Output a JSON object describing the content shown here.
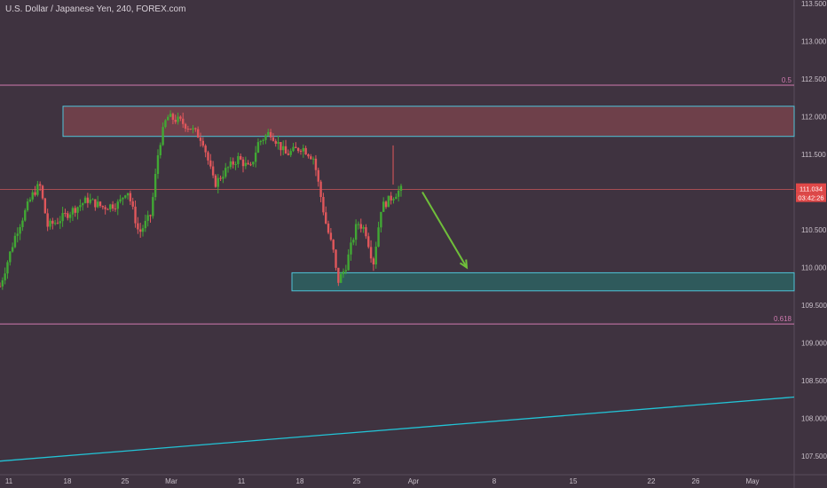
{
  "header": {
    "title": "U.S. Dollar / Japanese Yen, 240, FOREX.com"
  },
  "colors": {
    "background": "#3f3340",
    "axis_text": "#c9c0c9",
    "up_candle": "#41a834",
    "down_candle": "#e0575b",
    "fib_line": "#d07ab0",
    "price_line": "#e25d5d",
    "resistance_zone_fill": "#6e404a",
    "support_zone_fill": "#2f5a5c",
    "zone_border": "#4fc3d8",
    "trendline": "#22c4d6",
    "arrow": "#6fbf3a",
    "price_badge": "#e04848"
  },
  "price_axis": {
    "labels": [
      "113.500",
      "113.000",
      "112.500",
      "112.000",
      "111.500",
      "111.000",
      "110.500",
      "110.000",
      "109.500",
      "109.000",
      "108.500",
      "108.000",
      "107.500"
    ],
    "current_price": "111.034",
    "countdown": "03:42:26"
  },
  "time_axis": {
    "labels": [
      "11",
      "18",
      "25",
      "Mar",
      "11",
      "18",
      "25",
      "Apr",
      "8",
      "15",
      "22",
      "26",
      "May"
    ]
  },
  "annotations": {
    "fib_50": {
      "label": "0.5",
      "price": 112.42
    },
    "fib_618": {
      "label": "0.618",
      "price": 109.25
    },
    "resistance_zone": {
      "top": 112.14,
      "bottom": 111.74
    },
    "support_zone": {
      "top": 109.93,
      "bottom": 109.69
    },
    "trendline": {
      "start_price": 107.43,
      "end_price": 108.28
    }
  },
  "chart_data": {
    "type": "candlestick",
    "title": "U.S. Dollar / Japanese Yen, 240, FOREX.com",
    "ylim": [
      107.25,
      113.55
    ],
    "y_ticks": [
      107.5,
      108.0,
      108.5,
      109.0,
      109.5,
      110.0,
      110.5,
      111.0,
      111.5,
      112.0,
      112.5,
      113.0,
      113.5
    ],
    "x_ticks": [
      "11",
      "18",
      "25",
      "Mar",
      "11",
      "18",
      "25",
      "Apr",
      "8",
      "15",
      "22",
      "26",
      "May"
    ],
    "close_path": [
      [
        0,
        109.75
      ],
      [
        0.02,
        110.45
      ],
      [
        0.04,
        110.95
      ],
      [
        0.05,
        111.1
      ],
      [
        0.06,
        110.55
      ],
      [
        0.07,
        110.6
      ],
      [
        0.09,
        110.75
      ],
      [
        0.11,
        110.9
      ],
      [
        0.13,
        110.8
      ],
      [
        0.15,
        110.85
      ],
      [
        0.16,
        111.05
      ],
      [
        0.175,
        110.45
      ],
      [
        0.19,
        110.7
      ],
      [
        0.2,
        111.6
      ],
      [
        0.21,
        112.0
      ],
      [
        0.225,
        111.95
      ],
      [
        0.24,
        111.85
      ],
      [
        0.255,
        111.7
      ],
      [
        0.27,
        111.1
      ],
      [
        0.285,
        111.3
      ],
      [
        0.3,
        111.45
      ],
      [
        0.315,
        111.3
      ],
      [
        0.325,
        111.65
      ],
      [
        0.34,
        111.8
      ],
      [
        0.36,
        111.5
      ],
      [
        0.38,
        111.6
      ],
      [
        0.395,
        111.45
      ],
      [
        0.41,
        110.6
      ],
      [
        0.42,
        110.2
      ],
      [
        0.425,
        109.8
      ],
      [
        0.435,
        110.0
      ],
      [
        0.45,
        110.6
      ],
      [
        0.46,
        110.5
      ],
      [
        0.47,
        110.05
      ],
      [
        0.48,
        110.8
      ],
      [
        0.49,
        110.9
      ],
      [
        0.5,
        111.0
      ],
      [
        0.505,
        111.03
      ]
    ]
  }
}
